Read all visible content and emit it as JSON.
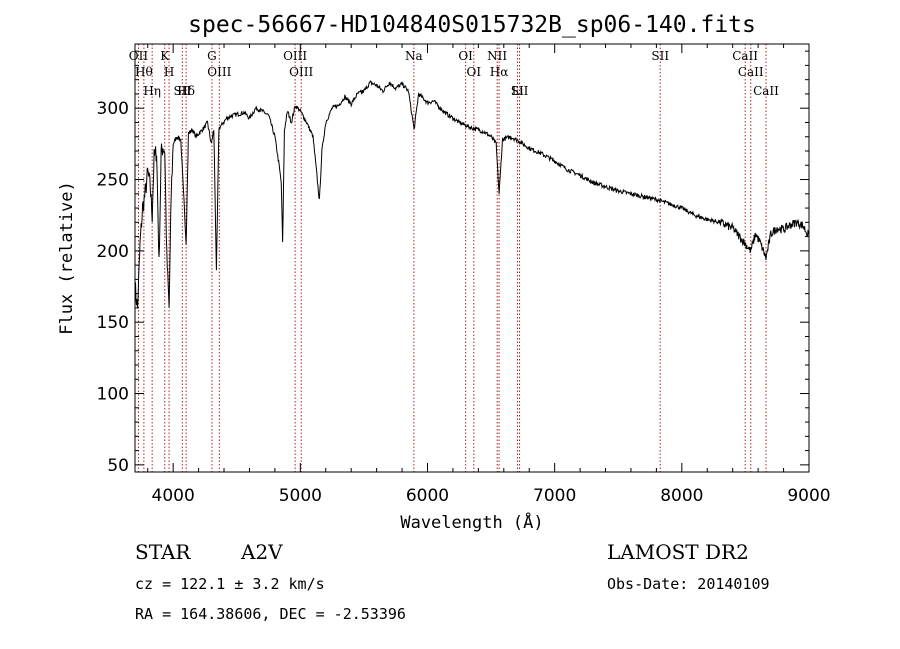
{
  "chart_data": {
    "type": "line",
    "title": "spec-56667-HD104840S015732B_sp06-140.fits",
    "xlabel": "Wavelength (Å)",
    "ylabel": "Flux (relative)",
    "xlim": [
      3700,
      9000
    ],
    "ylim": [
      45,
      345
    ],
    "x_ticks": [
      4000,
      5000,
      6000,
      7000,
      8000,
      9000
    ],
    "y_ticks": [
      50,
      100,
      150,
      200,
      250,
      300
    ],
    "grid": false,
    "line_color": "#000000",
    "marker_color": "#b22222",
    "series": [
      {
        "x": [
          3700,
          3720,
          3740,
          3760,
          3780,
          3800,
          3820,
          3835,
          3850,
          3870,
          3889,
          3905,
          3920,
          3934,
          3950,
          3968,
          3985,
          4000,
          4030,
          4060,
          4085,
          4102,
          4120,
          4150,
          4180,
          4210,
          4240,
          4270,
          4300,
          4320,
          4340,
          4360,
          4380,
          4420,
          4470,
          4520,
          4560,
          4600,
          4650,
          4700,
          4750,
          4800,
          4830,
          4850,
          4861,
          4875,
          4900,
          4930,
          4960,
          5000,
          5050,
          5100,
          5150,
          5170,
          5200,
          5250,
          5300,
          5350,
          5400,
          5450,
          5500,
          5550,
          5600,
          5650,
          5700,
          5750,
          5800,
          5850,
          5895,
          5930,
          6000,
          6050,
          6100,
          6150,
          6200,
          6250,
          6300,
          6350,
          6400,
          6450,
          6500,
          6540,
          6563,
          6590,
          6650,
          6700,
          6750,
          6800,
          6900,
          7000,
          7100,
          7200,
          7300,
          7400,
          7500,
          7600,
          7700,
          7800,
          7900,
          8000,
          8100,
          8200,
          8300,
          8400,
          8498,
          8542,
          8580,
          8620,
          8662,
          8700,
          8750,
          8800,
          8850,
          8900,
          8950,
          9000
        ],
        "y": [
          175,
          160,
          205,
          230,
          240,
          255,
          245,
          225,
          265,
          270,
          190,
          268,
          273,
          270,
          195,
          160,
          240,
          275,
          280,
          278,
          235,
          205,
          282,
          285,
          280,
          283,
          286,
          290,
          275,
          285,
          185,
          286,
          288,
          293,
          295,
          296,
          297,
          293,
          300,
          298,
          295,
          280,
          262,
          248,
          205,
          285,
          298,
          290,
          302,
          298,
          290,
          280,
          235,
          270,
          290,
          300,
          302,
          308,
          303,
          310,
          312,
          318,
          316,
          312,
          318,
          314,
          317,
          312,
          285,
          310,
          304,
          305,
          300,
          296,
          293,
          290,
          288,
          286,
          285,
          283,
          280,
          275,
          240,
          278,
          280,
          278,
          275,
          272,
          268,
          263,
          257,
          253,
          248,
          245,
          242,
          240,
          238,
          236,
          233,
          230,
          225,
          222,
          220,
          216,
          205,
          200,
          212,
          205,
          195,
          212,
          216,
          215,
          218,
          220,
          218,
          210
        ]
      }
    ],
    "line_markers": [
      {
        "w": 3727,
        "label": "OII"
      },
      {
        "w": 3770,
        "label": "Hθ"
      },
      {
        "w": 3835,
        "label": "Hη"
      },
      {
        "w": 3934,
        "label": "K"
      },
      {
        "w": 3968,
        "label": "H"
      },
      {
        "w": 4072,
        "label": "SII"
      },
      {
        "w": 4102,
        "label": "Hδ"
      },
      {
        "w": 4305,
        "label": "G"
      },
      {
        "w": 4363,
        "label": "OIII"
      },
      {
        "w": 4959,
        "label": "OIII"
      },
      {
        "w": 5007,
        "label": "OIII"
      },
      {
        "w": 5893,
        "label": "Na"
      },
      {
        "w": 6300,
        "label": "OI"
      },
      {
        "w": 6364,
        "label": "OI"
      },
      {
        "w": 6548,
        "label": "NII"
      },
      {
        "w": 6563,
        "label": "Hα"
      },
      {
        "w": 6708,
        "label": "Li"
      },
      {
        "w": 6724,
        "label": "SII"
      },
      {
        "w": 7830,
        "label": "SII"
      },
      {
        "w": 8498,
        "label": "CaII"
      },
      {
        "w": 8542,
        "label": "CaII"
      },
      {
        "w": 8662,
        "label": "CaII"
      }
    ]
  },
  "info": {
    "object_class": "STAR",
    "subclass": "A2V",
    "survey": "LAMOST DR2",
    "cz": "cz = 122.1 ± 3.2 km/s",
    "obs_date": "Obs-Date: 20140109",
    "radec": "RA = 164.38606, DEC =  -2.53396"
  }
}
